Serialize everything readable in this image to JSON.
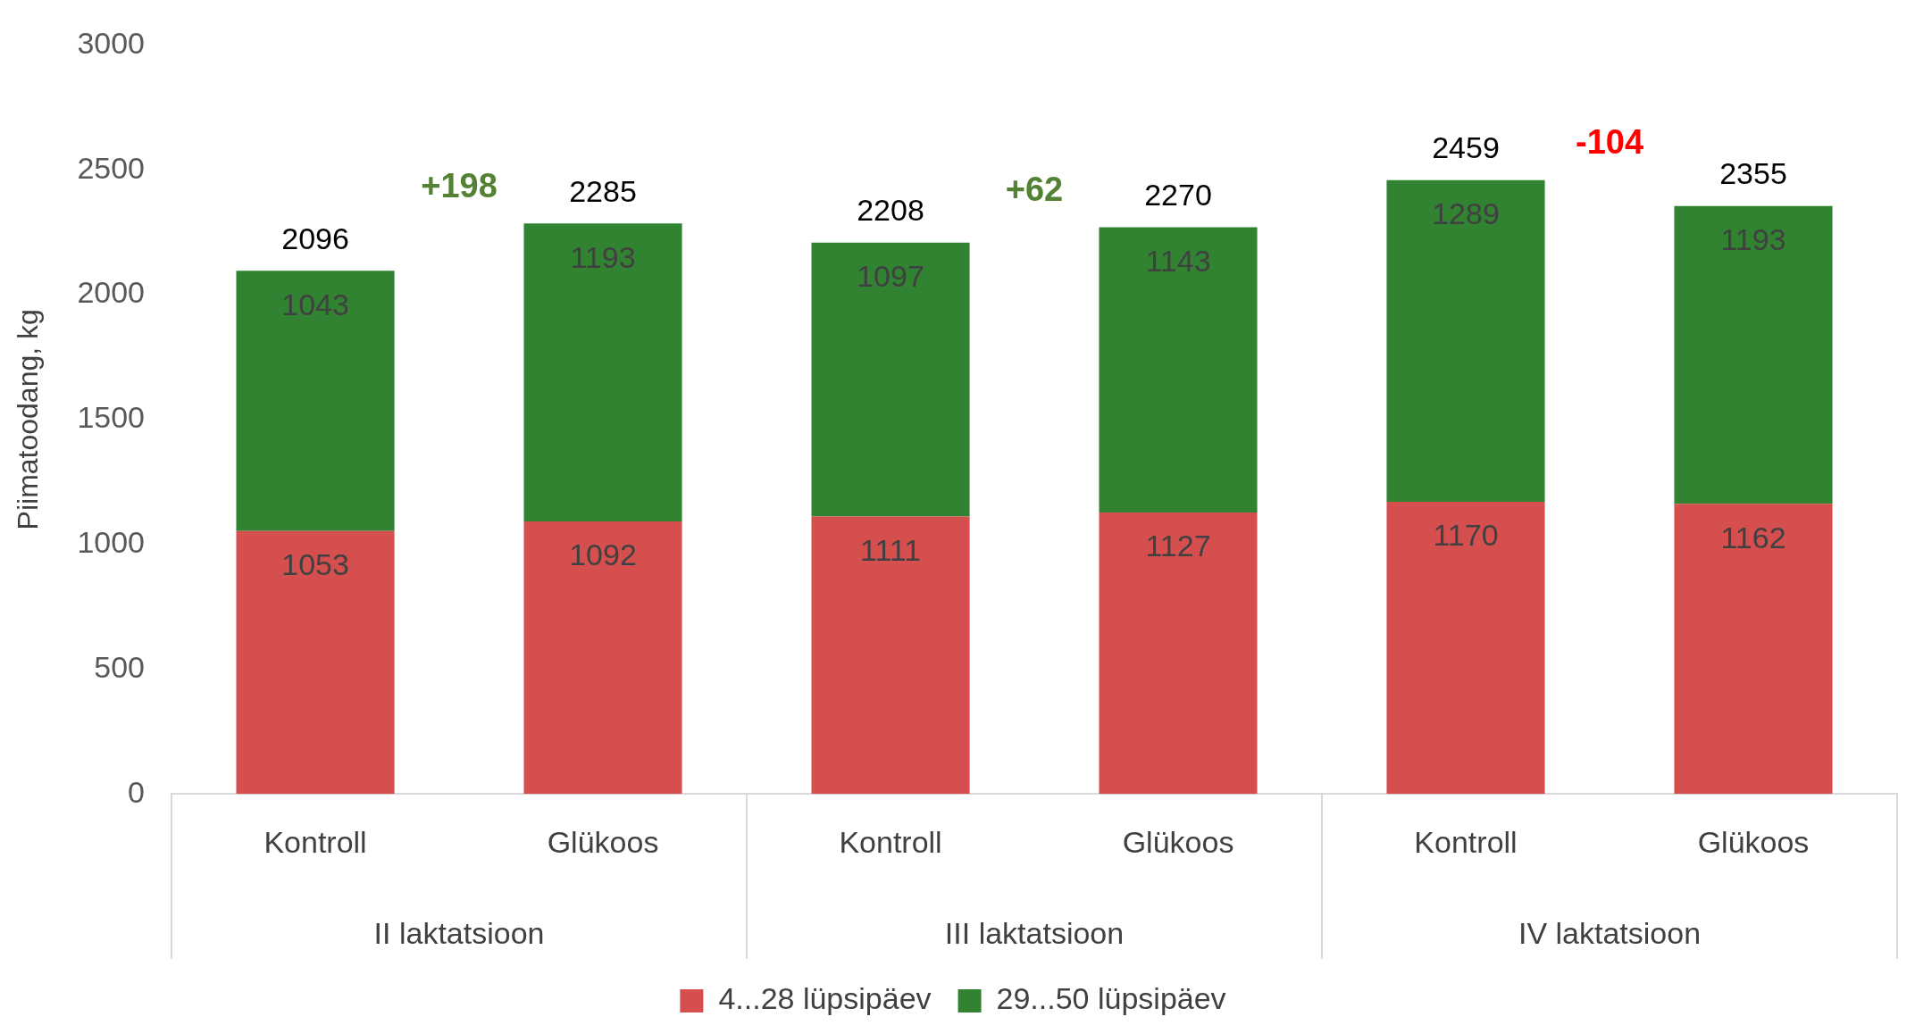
{
  "chart_data": {
    "type": "bar",
    "stacked": true,
    "ylabel": "Piimatoodang, kg",
    "categories": [
      "Kontroll",
      "Glükoos",
      "Kontroll",
      "Glükoos",
      "Kontroll",
      "Glükoos"
    ],
    "series": [
      {
        "name": "4...28 lüpsipäev",
        "color": "#d64f4f",
        "values": [
          1053,
          1092,
          1111,
          1127,
          1170,
          1162
        ]
      },
      {
        "name": "29...50 lüpsipäev",
        "color": "#318231",
        "values": [
          1043,
          1193,
          1097,
          1143,
          1289,
          1193
        ]
      }
    ],
    "totals": [
      "2096",
      "2285",
      "2208",
      "2270",
      "2459",
      "2355"
    ],
    "data_labels": true,
    "annotations": [
      "II laktatsioon",
      "III laktatsioon",
      "IV laktatsioon",
      "+198",
      "+62",
      "-104"
    ],
    "ylim": [
      0,
      3000
    ],
    "yticks": [
      0,
      500,
      1000,
      1500,
      2000,
      2500,
      3000
    ],
    "grid": false,
    "legend": "bottom"
  }
}
